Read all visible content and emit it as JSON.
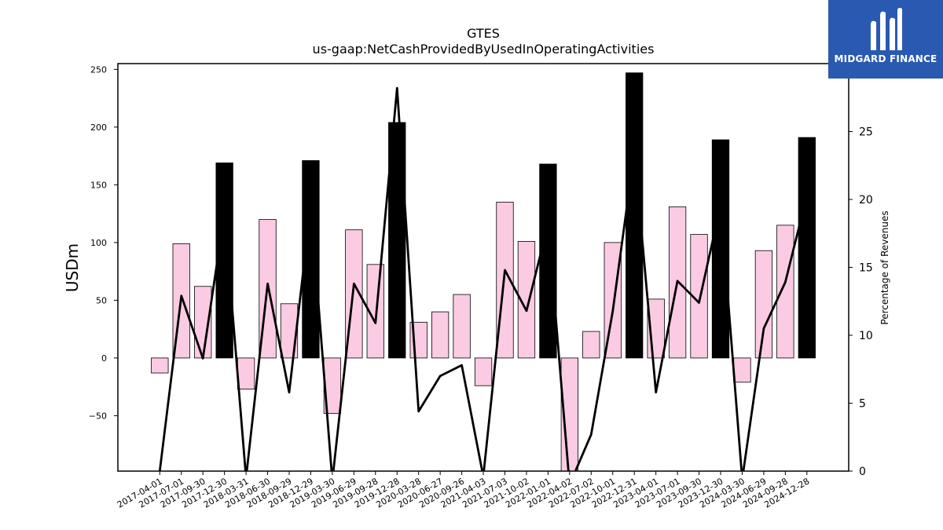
{
  "chart_data": {
    "type": "bar",
    "title": "GTES",
    "subtitle": "us-gaap:NetCashProvidedByUsedInOperatingActivities",
    "ylabel": "USDm",
    "ylabel_right": "Percentage of Revenues",
    "ylim": [
      -98,
      255
    ],
    "ylim_right": [
      0,
      30
    ],
    "yticks": [
      -50,
      0,
      50,
      100,
      150,
      200,
      250
    ],
    "yticks_right": [
      0,
      5,
      10,
      15,
      20,
      25
    ],
    "categories": [
      "2017-04-01",
      "2017-07-01",
      "2017-09-30",
      "2017-12-30",
      "2018-03-31",
      "2018-06-30",
      "2018-09-29",
      "2018-12-29",
      "2019-03-30",
      "2019-06-29",
      "2019-09-28",
      "2019-12-28",
      "2020-03-28",
      "2020-06-27",
      "2020-09-26",
      "2021-04-03",
      "2021-07-03",
      "2021-10-02",
      "2022-01-01",
      "2022-04-02",
      "2022-07-02",
      "2022-10-01",
      "2022-12-31",
      "2023-04-01",
      "2023-07-01",
      "2023-09-30",
      "2023-12-30",
      "2024-03-30",
      "2024-06-29",
      "2024-09-28",
      "2024-12-28"
    ],
    "series": [
      {
        "values": [
          -13,
          99,
          62,
          169,
          -27,
          120,
          47,
          171,
          -48,
          111,
          81,
          204,
          31,
          40,
          55,
          -24,
          135,
          101,
          168,
          -98,
          23,
          100,
          247,
          51,
          131,
          107,
          189,
          -21,
          93,
          115,
          191
        ]
      },
      {
        "axis": "right",
        "type": "line",
        "values": [
          0,
          12.9,
          8.3,
          19.0,
          -0.5,
          13.8,
          5.8,
          19.5,
          -0.7,
          13.8,
          10.9,
          28.2,
          4.4,
          7.0,
          7.8,
          -0.4,
          14.8,
          11.8,
          18.2,
          -1.0,
          2.7,
          11.8,
          23.5,
          5.8,
          14.0,
          12.4,
          19.6,
          -0.6,
          10.5,
          13.9,
          20.3
        ]
      }
    ],
    "highlight_indices": [
      3,
      7,
      11,
      18,
      22,
      26,
      30
    ],
    "colors": {
      "bar": "#fbcbe3",
      "bar_highlight": "#000000",
      "line": "#000000"
    },
    "grid": false
  },
  "logo": {
    "text": "MIDGARD FINANCE",
    "background": "#2a59b1"
  }
}
